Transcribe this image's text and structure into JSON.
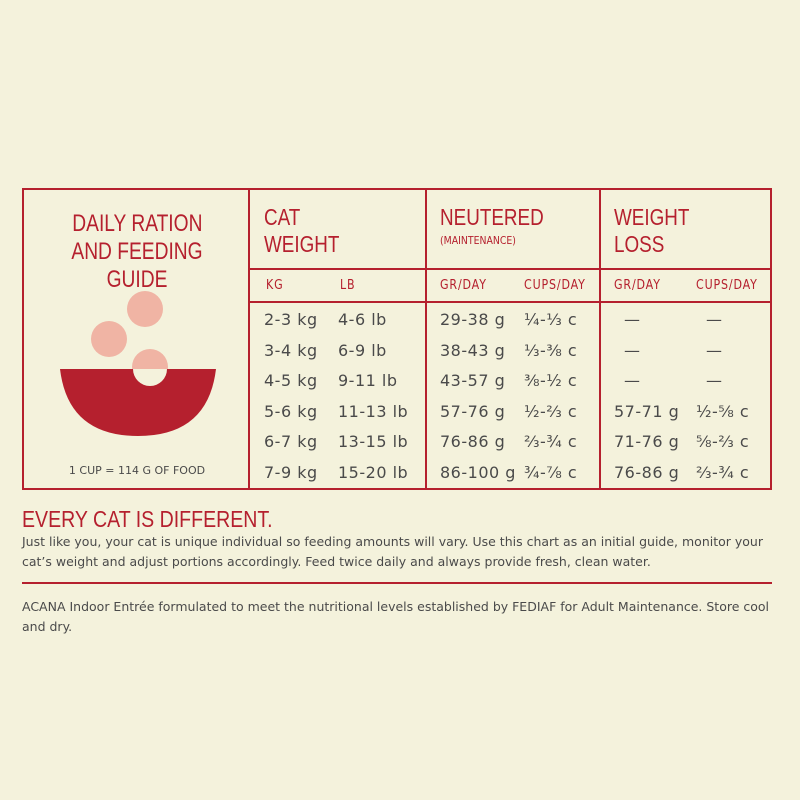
{
  "guide": {
    "title_line1": "DAILY RATION",
    "title_line2": "AND FEEDING GUIDE",
    "cup_note": "1 CUP = 114 G OF FOOD",
    "columns": [
      {
        "h1": "CAT",
        "h2": "WEIGHT",
        "sub": "",
        "units": [
          "KG",
          "LB"
        ]
      },
      {
        "h1": "NEUTERED",
        "h2": "",
        "sub": "(MAINTENANCE)",
        "units": [
          "GR/DAY",
          "CUPS/DAY"
        ]
      },
      {
        "h1": "WEIGHT",
        "h2": "LOSS",
        "sub": "",
        "units": [
          "GR/DAY",
          "CUPS/DAY"
        ]
      }
    ],
    "rows": [
      [
        "2-3 kg",
        "4-6 lb",
        "29-38 g",
        "¼-⅓ c",
        "—",
        "—"
      ],
      [
        "3-4 kg",
        "6-9 lb",
        "38-43 g",
        "⅓-⅜ c",
        "—",
        "—"
      ],
      [
        "4-5 kg",
        "9-11 lb",
        "43-57 g",
        "⅜-½ c",
        "—",
        "—"
      ],
      [
        "5-6 kg",
        "11-13 lb",
        "57-76 g",
        "½-⅔ c",
        "57-71 g",
        "½-⅝ c"
      ],
      [
        "6-7 kg",
        "13-15 lb",
        "76-86 g",
        "⅔-¾ c",
        "71-76 g",
        "⅝-⅔ c"
      ],
      [
        "7-9 kg",
        "15-20 lb",
        "86-100 g",
        "¾-⅞ c",
        "76-86 g",
        "⅔-¾ c"
      ]
    ]
  },
  "note": {
    "heading": "EVERY CAT IS DIFFERENT.",
    "body": "Just like you, your cat is unique individual so feeding amounts will vary. Use this chart as an initial guide, monitor your cat’s weight and adjust portions accordingly. Feed twice daily and always provide fresh, clean water."
  },
  "footer": "ACANA Indoor Entrée formulated to meet the nutritional levels established by FEDIAF  for Adult Maintenance. Store cool and dry.",
  "colors": {
    "accent": "#b5202e",
    "background": "#f4f2dc",
    "bowl": "#b5202e",
    "kibble": "#f0b4a4"
  }
}
